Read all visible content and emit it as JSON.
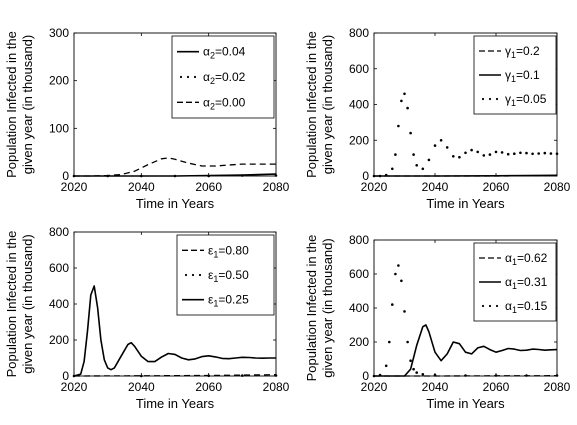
{
  "chart_data": [
    {
      "type": "line",
      "id": "tl",
      "xlabel": "Time in Years",
      "ylabel_lines": [
        "Population Infected in the",
        "given year (in thousand)"
      ],
      "xlim": [
        2020,
        2080
      ],
      "ylim": [
        0,
        300
      ],
      "xticks": [
        2020,
        2040,
        2060,
        2080
      ],
      "yticks": [
        0,
        100,
        200,
        300
      ],
      "legend_position": "top-right",
      "series": [
        {
          "name": "α2=0.04",
          "sym": "α",
          "sub": "2",
          "val": "=0.04",
          "style": "solid",
          "x": [
            2020,
            2030,
            2040,
            2050,
            2060,
            2070,
            2080
          ],
          "y": [
            0,
            0,
            0,
            0,
            1,
            2,
            4
          ]
        },
        {
          "name": "α2=0.02",
          "sym": "α",
          "sub": "2",
          "val": "=0.02",
          "style": "dotted",
          "x": [
            2020,
            2030,
            2040,
            2050,
            2060,
            2070,
            2080
          ],
          "y": [
            0,
            0,
            0,
            0,
            0,
            1,
            1
          ]
        },
        {
          "name": "α2=0.00",
          "sym": "α",
          "sub": "2",
          "val": "=0.00",
          "style": "dashed",
          "x": [
            2020,
            2025,
            2030,
            2034,
            2038,
            2042,
            2046,
            2048,
            2050,
            2054,
            2058,
            2062,
            2066,
            2070,
            2075,
            2080
          ],
          "y": [
            0,
            0,
            1,
            3,
            10,
            24,
            36,
            38,
            35,
            27,
            21,
            21,
            23,
            25,
            25,
            25
          ]
        }
      ]
    },
    {
      "type": "line",
      "id": "tr",
      "xlabel": "Time in Years",
      "ylabel_lines": [
        "Population Infected in the",
        "given year (in thousand)"
      ],
      "xlim": [
        2020,
        2080
      ],
      "ylim": [
        0,
        800
      ],
      "xticks": [
        2020,
        2040,
        2060,
        2080
      ],
      "yticks": [
        0,
        200,
        400,
        600,
        800
      ],
      "legend_position": "top-right",
      "series": [
        {
          "name": "γ1=0.2",
          "sym": "γ",
          "sub": "1",
          "val": "=0.2",
          "style": "dashed",
          "x": [
            2020,
            2040,
            2060,
            2070,
            2080
          ],
          "y": [
            0,
            0,
            0,
            1,
            2
          ]
        },
        {
          "name": "γ1=0.1",
          "sym": "γ",
          "sub": "1",
          "val": "=0.1",
          "style": "solid",
          "x": [
            2020,
            2040,
            2060,
            2070,
            2080
          ],
          "y": [
            0,
            0,
            1,
            2,
            4
          ]
        },
        {
          "name": "γ1=0.05",
          "sym": "γ",
          "sub": "1",
          "val": "=0.05",
          "style": "dotted",
          "x": [
            2020,
            2022,
            2024,
            2026,
            2027,
            2028,
            2029,
            2030,
            2031,
            2032,
            2033,
            2034,
            2036,
            2038,
            2040,
            2042,
            2044,
            2046,
            2048,
            2050,
            2052,
            2054,
            2056,
            2058,
            2060,
            2062,
            2064,
            2066,
            2068,
            2070,
            2072,
            2074,
            2076,
            2078,
            2080
          ],
          "y": [
            0,
            0,
            5,
            40,
            120,
            280,
            420,
            460,
            380,
            240,
            120,
            60,
            40,
            90,
            170,
            200,
            160,
            110,
            105,
            130,
            145,
            135,
            115,
            120,
            135,
            132,
            122,
            125,
            130,
            128,
            124,
            126,
            128,
            126,
            125
          ]
        }
      ]
    },
    {
      "type": "line",
      "id": "bl",
      "xlabel": "Time in Years",
      "ylabel_lines": [
        "Population Infected in the",
        "given year (in thousand)"
      ],
      "xlim": [
        2020,
        2080
      ],
      "ylim": [
        0,
        800
      ],
      "xticks": [
        2020,
        2040,
        2060,
        2080
      ],
      "yticks": [
        0,
        200,
        400,
        600,
        800
      ],
      "legend_position": "top-right",
      "series": [
        {
          "name": "ε1=0.80",
          "sym": "ε",
          "sub": "1",
          "val": "=0.80",
          "style": "dashed",
          "x": [
            2020,
            2040,
            2060,
            2070,
            2080
          ],
          "y": [
            0,
            1,
            3,
            5,
            7
          ]
        },
        {
          "name": "ε1=0.50",
          "sym": "ε",
          "sub": "1",
          "val": "=0.50",
          "style": "dotted",
          "x": [
            2020,
            2040,
            2060,
            2070,
            2080
          ],
          "y": [
            0,
            0,
            1,
            2,
            3
          ]
        },
        {
          "name": "ε1=0.25",
          "sym": "ε",
          "sub": "1",
          "val": "=0.25",
          "style": "solid",
          "x": [
            2020,
            2022,
            2023,
            2024,
            2025,
            2026,
            2027,
            2028,
            2029,
            2030,
            2031,
            2032,
            2034,
            2036,
            2037,
            2038,
            2040,
            2042,
            2044,
            2046,
            2048,
            2050,
            2052,
            2054,
            2056,
            2058,
            2060,
            2062,
            2064,
            2066,
            2068,
            2070,
            2072,
            2074,
            2076,
            2078,
            2080
          ],
          "y": [
            0,
            10,
            80,
            250,
            450,
            500,
            380,
            200,
            90,
            45,
            35,
            45,
            110,
            175,
            185,
            165,
            110,
            80,
            80,
            105,
            125,
            120,
            100,
            90,
            95,
            108,
            112,
            106,
            98,
            96,
            100,
            104,
            103,
            100,
            99,
            100,
            100
          ]
        }
      ]
    },
    {
      "type": "line",
      "id": "br",
      "xlabel": "Time in Years",
      "ylabel_lines": [
        "Population Infected in the",
        "given year (in thousand)"
      ],
      "xlim": [
        2020,
        2080
      ],
      "ylim": [
        0,
        800
      ],
      "xticks": [
        2020,
        2040,
        2060,
        2080
      ],
      "yticks": [
        0,
        200,
        400,
        600,
        800
      ],
      "legend_position": "top-right",
      "series": [
        {
          "name": "α1=0.62",
          "sym": "α",
          "sub": "1",
          "val": "=0.62",
          "style": "dashed",
          "x": [
            2020,
            2040,
            2060,
            2080
          ],
          "y": [
            0,
            0,
            1,
            2
          ]
        },
        {
          "name": "α1=0.31",
          "sym": "α",
          "sub": "1",
          "val": "=0.31",
          "style": "solid",
          "x": [
            2020,
            2030,
            2032,
            2034,
            2036,
            2037,
            2038,
            2040,
            2042,
            2044,
            2046,
            2048,
            2050,
            2052,
            2054,
            2056,
            2058,
            2060,
            2062,
            2064,
            2066,
            2068,
            2070,
            2072,
            2074,
            2076,
            2078,
            2080
          ],
          "y": [
            0,
            0,
            40,
            180,
            290,
            300,
            260,
            140,
            90,
            130,
            200,
            190,
            140,
            130,
            165,
            175,
            155,
            140,
            150,
            162,
            158,
            150,
            152,
            158,
            156,
            152,
            154,
            155
          ]
        },
        {
          "name": "α1=0.15",
          "sym": "α",
          "sub": "1",
          "val": "=0.15",
          "style": "dotted",
          "x": [
            2020,
            2022,
            2024,
            2025,
            2026,
            2027,
            2028,
            2029,
            2030,
            2031,
            2032,
            2033,
            2034,
            2036,
            2040,
            2050,
            2060,
            2070,
            2080
          ],
          "y": [
            0,
            5,
            60,
            200,
            420,
            600,
            650,
            560,
            380,
            200,
            90,
            40,
            20,
            10,
            5,
            3,
            3,
            3,
            3
          ]
        }
      ]
    }
  ]
}
